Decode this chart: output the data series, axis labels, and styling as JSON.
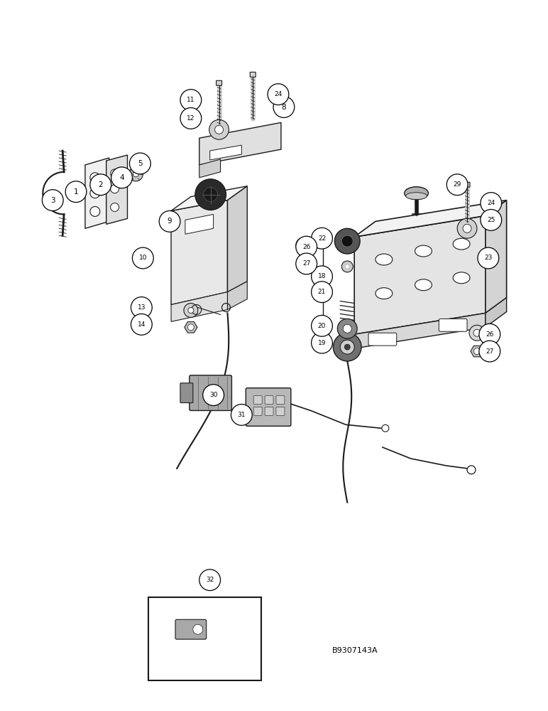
{
  "background_color": "#ffffff",
  "fig_width": 7.72,
  "fig_height": 10.0,
  "watermark": "B9307143A",
  "lc": "#1a1a1a",
  "labels": [
    [
      "1",
      105,
      268
    ],
    [
      "2",
      140,
      258
    ],
    [
      "3",
      72,
      280
    ],
    [
      "4",
      170,
      248
    ],
    [
      "5",
      196,
      228
    ],
    [
      "8",
      400,
      148
    ],
    [
      "9",
      238,
      310
    ],
    [
      "10",
      200,
      362
    ],
    [
      "11",
      268,
      138
    ],
    [
      "12",
      268,
      164
    ],
    [
      "13",
      198,
      432
    ],
    [
      "14",
      198,
      456
    ],
    [
      "18",
      454,
      388
    ],
    [
      "19",
      454,
      482
    ],
    [
      "20",
      454,
      458
    ],
    [
      "21",
      454,
      410
    ],
    [
      "22",
      454,
      334
    ],
    [
      "23",
      690,
      362
    ],
    [
      "24",
      392,
      130
    ],
    [
      "24",
      694,
      284
    ],
    [
      "25",
      694,
      308
    ],
    [
      "26",
      432,
      346
    ],
    [
      "26",
      692,
      470
    ],
    [
      "27",
      432,
      370
    ],
    [
      "27",
      692,
      494
    ],
    [
      "29",
      646,
      258
    ],
    [
      "30",
      300,
      556
    ],
    [
      "31",
      340,
      584
    ],
    [
      "32",
      295,
      818
    ]
  ]
}
